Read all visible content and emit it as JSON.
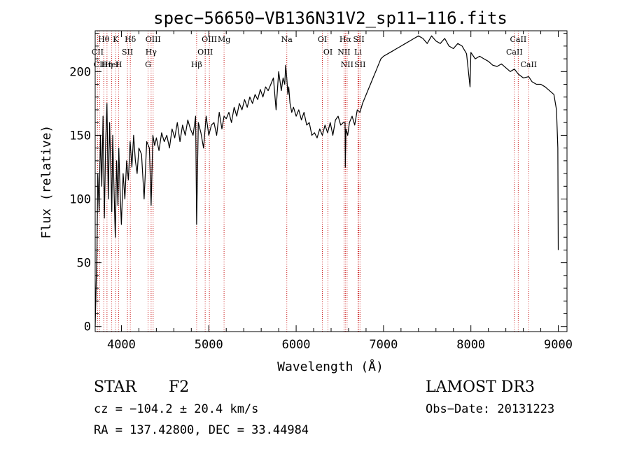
{
  "chart_data": {
    "type": "line",
    "title": "spec−56650−VB136N31V2_sp11−116.fits",
    "xlabel": "Wavelength (Å)",
    "ylabel": "Flux (relative)",
    "xlim": [
      3700,
      9100
    ],
    "ylim": [
      -4,
      232
    ],
    "xticks": [
      4000,
      5000,
      6000,
      7000,
      8000,
      9000
    ],
    "yticks": [
      0,
      50,
      100,
      150,
      200
    ],
    "grid": false,
    "line_color": "#000000",
    "marker_color": "#cc2222",
    "series": [
      {
        "x": [
          3700,
          3720,
          3730,
          3745,
          3760,
          3775,
          3790,
          3805,
          3820,
          3835,
          3850,
          3865,
          3880,
          3890,
          3900,
          3915,
          3930,
          3945,
          3960,
          3970,
          3985,
          4000,
          4020,
          4040,
          4060,
          4080,
          4100,
          4120,
          4140,
          4160,
          4180,
          4200,
          4230,
          4260,
          4290,
          4320,
          4340,
          4360,
          4380,
          4400,
          4430,
          4460,
          4490,
          4520,
          4550,
          4580,
          4610,
          4640,
          4670,
          4700,
          4730,
          4760,
          4790,
          4820,
          4850,
          4861,
          4880,
          4910,
          4940,
          4970,
          5000,
          5030,
          5060,
          5090,
          5120,
          5150,
          5175,
          5200,
          5230,
          5260,
          5290,
          5320,
          5350,
          5380,
          5410,
          5440,
          5470,
          5500,
          5530,
          5560,
          5590,
          5620,
          5650,
          5680,
          5710,
          5740,
          5770,
          5800,
          5830,
          5850,
          5870,
          5880,
          5893,
          5905,
          5915,
          5930,
          5950,
          5970,
          6000,
          6030,
          6060,
          6090,
          6120,
          6150,
          6180,
          6210,
          6240,
          6270,
          6300,
          6330,
          6360,
          6390,
          6420,
          6450,
          6480,
          6510,
          6540,
          6560,
          6563,
          6570,
          6590,
          6610,
          6640,
          6670,
          6700,
          6730,
          6760,
          6790,
          6820,
          6850,
          6880,
          6910,
          6940,
          6970,
          7000,
          7050,
          7100,
          7150,
          7200,
          7250,
          7300,
          7350,
          7400,
          7450,
          7500,
          7550,
          7600,
          7650,
          7700,
          7750,
          7800,
          7850,
          7900,
          7950,
          7990,
          8000,
          8050,
          8100,
          8150,
          8200,
          8250,
          8300,
          8350,
          8400,
          8450,
          8498,
          8542,
          8600,
          8662,
          8700,
          8750,
          8800,
          8850,
          8900,
          8950,
          8980,
          8995,
          9000
        ],
        "values": [
          0,
          60,
          120,
          90,
          150,
          110,
          165,
          85,
          145,
          175,
          100,
          160,
          120,
          90,
          150,
          110,
          70,
          130,
          95,
          140,
          105,
          80,
          120,
          100,
          130,
          115,
          145,
          125,
          150,
          130,
          120,
          140,
          135,
          100,
          145,
          140,
          95,
          150,
          142,
          148,
          138,
          152,
          145,
          150,
          140,
          155,
          148,
          160,
          145,
          158,
          150,
          162,
          155,
          150,
          165,
          80,
          160,
          152,
          140,
          165,
          150,
          158,
          160,
          150,
          168,
          155,
          165,
          163,
          168,
          160,
          172,
          165,
          175,
          170,
          178,
          172,
          180,
          175,
          182,
          178,
          186,
          180,
          188,
          185,
          190,
          195,
          170,
          200,
          185,
          195,
          190,
          205,
          195,
          182,
          188,
          175,
          168,
          172,
          165,
          170,
          162,
          168,
          158,
          160,
          150,
          152,
          148,
          155,
          150,
          158,
          152,
          160,
          150,
          162,
          165,
          158,
          160,
          160,
          125,
          155,
          150,
          160,
          165,
          158,
          170,
          168,
          175,
          180,
          185,
          190,
          195,
          200,
          205,
          210,
          212,
          214,
          216,
          218,
          220,
          222,
          224,
          226,
          228,
          226,
          222,
          228,
          224,
          222,
          226,
          220,
          218,
          222,
          220,
          214,
          188,
          215,
          210,
          212,
          210,
          208,
          205,
          204,
          206,
          203,
          200,
          202,
          198,
          195,
          196,
          192,
          190,
          190,
          188,
          185,
          182,
          170,
          140,
          60
        ]
      }
    ],
    "line_ids": [
      {
        "label": "Hθ",
        "x": 3798
      },
      {
        "label": "K",
        "x": 3934
      },
      {
        "label": "Hδ",
        "x": 4102
      },
      {
        "label": "OIII",
        "x": 4363
      },
      {
        "label": "OIII",
        "x": 5007
      },
      {
        "label": "CII",
        "x": 3727
      },
      {
        "label": "HeI",
        "x": 3889
      },
      {
        "label": "SII",
        "x": 4069
      },
      {
        "label": "Hγ",
        "x": 4340
      },
      {
        "label": "OIII",
        "x": 4959
      },
      {
        "label": "CII",
        "x": 3750
      },
      {
        "label": "Hη",
        "x": 3835
      },
      {
        "label": "H",
        "x": 3969
      },
      {
        "label": "G",
        "x": 4305
      },
      {
        "label": "Hβ",
        "x": 4861
      },
      {
        "label": "Mg",
        "x": 5175
      },
      {
        "label": "Na",
        "x": 5893
      },
      {
        "label": "OI",
        "x": 6300
      },
      {
        "label": "OI",
        "x": 6364
      },
      {
        "label": "Hα",
        "x": 6563
      },
      {
        "label": "SII",
        "x": 6717
      },
      {
        "label": "NII",
        "x": 6548
      },
      {
        "label": "Li",
        "x": 6708
      },
      {
        "label": "NII",
        "x": 6583
      },
      {
        "label": "SII",
        "x": 6731
      },
      {
        "label": "CaII",
        "x": 8542
      },
      {
        "label": "CaII",
        "x": 8498
      },
      {
        "label": "CaII",
        "x": 8662
      }
    ]
  },
  "info": {
    "object_class": "STAR",
    "subclass": "F2",
    "survey": "LAMOST DR3",
    "redshift_line": "cz = −104.2 ± 20.4 km/s",
    "obs_date_line": "Obs−Date: 20131223",
    "coords_line": "RA = 137.42800, DEC =  33.44984"
  }
}
